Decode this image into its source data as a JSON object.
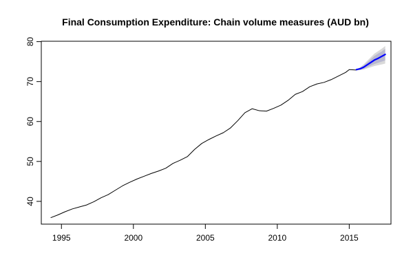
{
  "chart_data": {
    "type": "line",
    "title": "Final Consumption Expenditure: Chain volume measures (AUD bn)",
    "xlabel": "",
    "ylabel": "",
    "xlim": [
      1993.6,
      2017.9
    ],
    "ylim": [
      34.3,
      80.1
    ],
    "x_ticks": [
      1995,
      2000,
      2005,
      2010,
      2015
    ],
    "y_ticks": [
      40,
      50,
      60,
      70,
      80
    ],
    "grid": false,
    "colors": {
      "history": "#000000",
      "forecast": "#0000ff",
      "band80": "#b8b8d0",
      "band95": "#d9d9d9"
    },
    "series": [
      {
        "x": [
          1994.25,
          1994.75,
          1995.25,
          1995.75,
          1996.25,
          1996.75,
          1997.25,
          1997.75,
          1998.25,
          1998.75,
          1999.25,
          1999.75,
          2000.25,
          2000.75,
          2001.25,
          2001.75,
          2002.25,
          2002.75,
          2003.25,
          2003.75,
          2004.25,
          2004.75,
          2005.25,
          2005.75,
          2006.25,
          2006.75,
          2007.25,
          2007.75,
          2008.25,
          2008.75,
          2009.25,
          2009.75,
          2010.25,
          2010.75,
          2011.25,
          2011.75,
          2012.25,
          2012.75,
          2013.25,
          2013.75,
          2014.25,
          2014.75,
          2015.0,
          2015.5
        ],
        "values": [
          35.9,
          36.6,
          37.4,
          38.1,
          38.6,
          39.1,
          39.9,
          40.9,
          41.7,
          42.8,
          43.9,
          44.8,
          45.6,
          46.3,
          47.0,
          47.6,
          48.3,
          49.5,
          50.3,
          51.2,
          53.0,
          54.5,
          55.5,
          56.4,
          57.2,
          58.4,
          60.2,
          62.2,
          63.2,
          62.7,
          62.6,
          63.3,
          64.1,
          65.3,
          66.8,
          67.5,
          68.7,
          69.4,
          69.8,
          70.5,
          71.4,
          72.3,
          73.0,
          72.9
        ]
      },
      {
        "x": [
          2015.5,
          2015.75,
          2016.0,
          2016.25,
          2016.5,
          2016.75,
          2017.0,
          2017.25,
          2017.5
        ],
        "values": [
          73.0,
          73.2,
          73.6,
          74.2,
          74.8,
          75.4,
          75.8,
          76.3,
          76.8
        ],
        "lower80": [
          73.0,
          73.0,
          73.2,
          73.6,
          74.0,
          74.4,
          74.7,
          75.0,
          75.3
        ],
        "upper80": [
          73.0,
          73.4,
          74.0,
          74.8,
          75.6,
          76.4,
          77.0,
          77.5,
          78.2
        ],
        "lower95": [
          73.0,
          72.9,
          73.0,
          73.3,
          73.6,
          73.9,
          74.1,
          74.3,
          74.5
        ],
        "upper95": [
          73.0,
          73.6,
          74.3,
          75.2,
          76.1,
          77.0,
          77.6,
          78.2,
          78.9
        ]
      }
    ]
  }
}
